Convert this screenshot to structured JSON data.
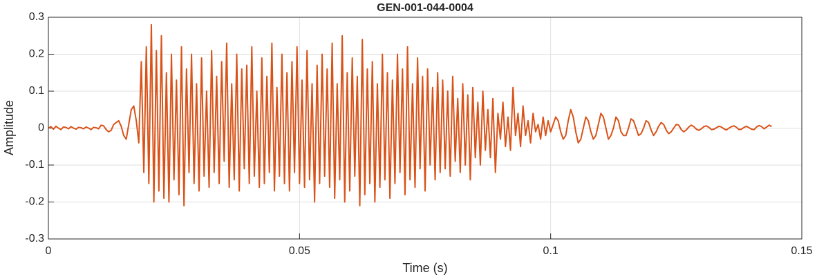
{
  "chart_data": {
    "type": "line",
    "title": "GEN-001-044-0004",
    "x_label": "Time (s)",
    "y_label": "Amplitude",
    "color": "#d95319",
    "grid": true,
    "xlim": [
      0,
      0.15
    ],
    "xticks": [
      0,
      0.05,
      0.1,
      0.15
    ],
    "ylim": [
      -0.3,
      0.3
    ],
    "yticks": [
      -0.3,
      -0.2,
      -0.1,
      0,
      0.1,
      0.2,
      0.3
    ],
    "x": [
      0,
      0.0005,
      0.001,
      0.0015,
      0.002,
      0.0025,
      0.003,
      0.0035,
      0.004,
      0.0045,
      0.005,
      0.0055,
      0.006,
      0.0065,
      0.007,
      0.0075,
      0.008,
      0.0085,
      0.009,
      0.0095,
      0.01,
      0.0105,
      0.011,
      0.0115,
      0.012,
      0.0125,
      0.013,
      0.0135,
      0.014,
      0.0145,
      0.015,
      0.0155,
      0.016,
      0.0165,
      0.017,
      0.0175,
      0.018,
      0.0185,
      0.019,
      0.0195,
      0.02,
      0.0205,
      0.021,
      0.0215,
      0.022,
      0.0225,
      0.023,
      0.0235,
      0.024,
      0.0245,
      0.025,
      0.0255,
      0.026,
      0.0265,
      0.027,
      0.0275,
      0.028,
      0.0285,
      0.029,
      0.0295,
      0.03,
      0.0305,
      0.031,
      0.0315,
      0.032,
      0.0325,
      0.033,
      0.0335,
      0.034,
      0.0345,
      0.035,
      0.0355,
      0.036,
      0.0365,
      0.037,
      0.0375,
      0.038,
      0.0385,
      0.039,
      0.0395,
      0.04,
      0.0405,
      0.041,
      0.0415,
      0.042,
      0.0425,
      0.043,
      0.0435,
      0.044,
      0.0445,
      0.045,
      0.0455,
      0.046,
      0.0465,
      0.047,
      0.0475,
      0.048,
      0.0485,
      0.049,
      0.0495,
      0.05,
      0.0505,
      0.051,
      0.0515,
      0.052,
      0.0525,
      0.053,
      0.0535,
      0.054,
      0.0545,
      0.055,
      0.0555,
      0.056,
      0.0565,
      0.057,
      0.0575,
      0.058,
      0.0585,
      0.059,
      0.0595,
      0.06,
      0.0605,
      0.061,
      0.0615,
      0.062,
      0.0625,
      0.063,
      0.0635,
      0.064,
      0.0645,
      0.065,
      0.0655,
      0.066,
      0.0665,
      0.067,
      0.0675,
      0.068,
      0.0685,
      0.069,
      0.0695,
      0.07,
      0.0705,
      0.071,
      0.0715,
      0.072,
      0.0725,
      0.073,
      0.0735,
      0.074,
      0.0745,
      0.075,
      0.0755,
      0.076,
      0.0765,
      0.077,
      0.0775,
      0.078,
      0.0785,
      0.079,
      0.0795,
      0.08,
      0.0805,
      0.081,
      0.0815,
      0.082,
      0.0825,
      0.083,
      0.0835,
      0.084,
      0.0845,
      0.085,
      0.0855,
      0.086,
      0.0865,
      0.087,
      0.0875,
      0.088,
      0.0885,
      0.089,
      0.0895,
      0.09,
      0.0905,
      0.091,
      0.0915,
      0.092,
      0.0925,
      0.093,
      0.0935,
      0.094,
      0.0945,
      0.095,
      0.0955,
      0.096,
      0.0965,
      0.097,
      0.0975,
      0.098,
      0.0985,
      0.099,
      0.0995,
      0.1,
      0.1005,
      0.101,
      0.1015,
      0.102,
      0.1025,
      0.103,
      0.1035,
      0.104,
      0.1045,
      0.105,
      0.1055,
      0.106,
      0.1065,
      0.107,
      0.1075,
      0.108,
      0.1085,
      0.109,
      0.1095,
      0.11,
      0.1105,
      0.111,
      0.1115,
      0.112,
      0.1125,
      0.113,
      0.1135,
      0.114,
      0.1145,
      0.115,
      0.1155,
      0.116,
      0.1165,
      0.117,
      0.1175,
      0.118,
      0.1185,
      0.119,
      0.1195,
      0.12,
      0.1205,
      0.121,
      0.1215,
      0.122,
      0.1225,
      0.123,
      0.1235,
      0.124,
      0.1245,
      0.125,
      0.1255,
      0.126,
      0.1265,
      0.127,
      0.1275,
      0.128,
      0.1285,
      0.129,
      0.1295,
      0.13,
      0.1305,
      0.131,
      0.1315,
      0.132,
      0.1325,
      0.133,
      0.1335,
      0.134,
      0.1345,
      0.135,
      0.1355,
      0.136,
      0.1365,
      0.137,
      0.1375,
      0.138,
      0.1385,
      0.139,
      0.1395,
      0.14,
      0.1405,
      0.141,
      0.1415,
      0.142,
      0.1425,
      0.143,
      0.1435,
      0.144
    ],
    "values": [
      0,
      0.004,
      -0.003,
      0.005,
      0,
      -0.004,
      0.003,
      0.002,
      -0.002,
      0.004,
      0,
      -0.003,
      0.002,
      0.001,
      -0.002,
      0.003,
      0,
      -0.004,
      0.002,
      0.001,
      -0.002,
      0.008,
      0.006,
      -0.004,
      -0.01,
      -0.006,
      0.01,
      0.015,
      0.02,
      0.005,
      -0.02,
      -0.03,
      0.01,
      0.05,
      0.06,
      0.02,
      -0.04,
      0.18,
      -0.12,
      0.22,
      -0.15,
      0.28,
      -0.2,
      0.21,
      -0.17,
      0.25,
      -0.19,
      0.15,
      -0.2,
      0.2,
      -0.14,
      0.13,
      -0.18,
      0.22,
      -0.21,
      0.16,
      -0.12,
      0.2,
      -0.15,
      0.12,
      -0.17,
      0.19,
      -0.13,
      0.1,
      -0.16,
      0.21,
      -0.12,
      0.14,
      -0.15,
      0.18,
      -0.09,
      0.23,
      -0.16,
      0.12,
      -0.14,
      0.2,
      -0.17,
      0.16,
      -0.11,
      0.17,
      -0.15,
      0.22,
      -0.13,
      0.1,
      -0.16,
      0.19,
      -0.15,
      0.14,
      -0.12,
      0.23,
      -0.17,
      0.11,
      -0.13,
      0.2,
      -0.15,
      0.15,
      -0.17,
      0.18,
      -0.12,
      0.22,
      -0.15,
      0.13,
      -0.16,
      0.21,
      -0.14,
      0.12,
      -0.2,
      0.17,
      -0.15,
      0.2,
      -0.13,
      0.16,
      -0.16,
      0.23,
      -0.19,
      0.12,
      -0.14,
      0.25,
      -0.2,
      0.15,
      -0.17,
      0.19,
      -0.13,
      0.14,
      -0.21,
      0.24,
      -0.18,
      0.16,
      -0.15,
      0.18,
      -0.2,
      0.12,
      -0.16,
      0.2,
      -0.14,
      0.15,
      -0.19,
      0.13,
      -0.15,
      0.2,
      -0.12,
      0.16,
      -0.18,
      0.22,
      -0.14,
      0.12,
      -0.16,
      0.19,
      -0.11,
      0.14,
      -0.17,
      0.16,
      -0.1,
      0.11,
      -0.14,
      0.15,
      -0.12,
      0.13,
      -0.11,
      0.1,
      -0.13,
      0.14,
      -0.09,
      0.08,
      -0.12,
      0.12,
      -0.1,
      0.09,
      -0.14,
      0.11,
      -0.08,
      0.07,
      -0.1,
      0.1,
      -0.06,
      0.05,
      -0.08,
      0.08,
      -0.12,
      0.04,
      -0.03,
      0.07,
      -0.05,
      0.03,
      -0.06,
      0.11,
      -0.02,
      0.04,
      -0.05,
      0.06,
      -0.02,
      0.02,
      -0.04,
      0.04,
      -0.01,
      0.01,
      -0.03,
      0.03,
      -0.02,
      0.02,
      -0.01,
      0.01,
      0.03,
      0.02,
      -0.01,
      -0.03,
      -0.02,
      0.02,
      0.05,
      0.03,
      -0.01,
      -0.04,
      -0.03,
      0,
      0.03,
      0.02,
      -0.01,
      -0.03,
      -0.02,
      0.01,
      0.04,
      0.03,
      0,
      -0.03,
      -0.02,
      0,
      0.03,
      0.02,
      -0.01,
      -0.02,
      -0.02,
      0,
      0.025,
      0.02,
      0,
      -0.02,
      -0.015,
      0,
      0.02,
      0.015,
      -0.005,
      -0.02,
      -0.01,
      0.005,
      0.015,
      0.01,
      -0.005,
      -0.015,
      -0.01,
      0,
      0.01,
      0.008,
      -0.004,
      -0.01,
      -0.005,
      0.003,
      0.008,
      0.004,
      -0.003,
      -0.006,
      -0.002,
      0.004,
      0.006,
      0.002,
      -0.004,
      -0.003,
      0.001,
      0.005,
      0.003,
      -0.002,
      -0.005,
      0,
      0.004,
      0.006,
      0.002,
      -0.004,
      -0.003,
      0.002,
      0.005,
      0.001,
      -0.003,
      -0.004,
      0.003,
      0.007,
      0.004,
      -0.002,
      0.003,
      0.008,
      0.004
    ]
  }
}
